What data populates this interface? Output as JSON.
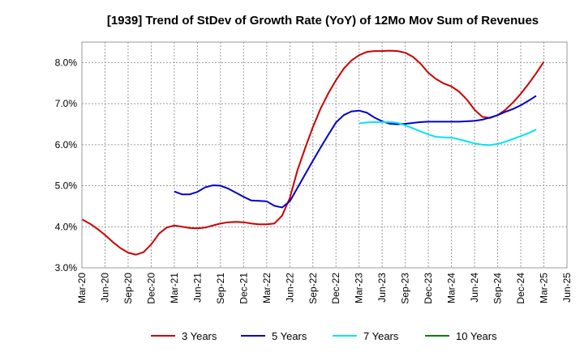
{
  "chart_data": {
    "type": "line",
    "title": "[1939]  Trend of StDev of Growth Rate (YoY) of 12Mo Mov Sum of Revenues",
    "xlabel": "",
    "ylabel": "",
    "ylim": [
      3.0,
      8.5
    ],
    "y_ticks": [
      3.0,
      4.0,
      5.0,
      6.0,
      7.0,
      8.0
    ],
    "y_tick_labels": [
      "3.0%",
      "4.0%",
      "5.0%",
      "6.0%",
      "7.0%",
      "8.0%"
    ],
    "x_tick_labels": [
      "Mar-20",
      "Jun-20",
      "Sep-20",
      "Dec-20",
      "Mar-21",
      "Jun-21",
      "Sep-21",
      "Dec-21",
      "Mar-22",
      "Jun-22",
      "Sep-22",
      "Dec-22",
      "Mar-23",
      "Jun-23",
      "Sep-23",
      "Dec-23",
      "Mar-24",
      "Jun-24",
      "Sep-24",
      "Dec-24",
      "Mar-25",
      "Jun-25"
    ],
    "x_start": "Mar-20",
    "x_months": 63,
    "grid": true,
    "legend_position": "bottom",
    "series": [
      {
        "name": "3 Years",
        "color": "#cc0000",
        "start_month": 0,
        "values": [
          4.18,
          4.08,
          3.95,
          3.8,
          3.63,
          3.48,
          3.37,
          3.32,
          3.38,
          3.57,
          3.83,
          3.98,
          4.03,
          4.0,
          3.97,
          3.96,
          3.98,
          4.03,
          4.08,
          4.11,
          4.12,
          4.11,
          4.08,
          4.06,
          4.06,
          4.08,
          4.27,
          4.7,
          5.38,
          5.92,
          6.43,
          6.88,
          7.25,
          7.57,
          7.85,
          8.05,
          8.18,
          8.26,
          8.28,
          8.28,
          8.29,
          8.28,
          8.24,
          8.14,
          7.97,
          7.75,
          7.6,
          7.49,
          7.42,
          7.29,
          7.1,
          6.85,
          6.68,
          6.65,
          6.72,
          6.85,
          7.03,
          7.24,
          7.48,
          7.74,
          8.02
        ]
      },
      {
        "name": "5 Years",
        "color": "#0000cc",
        "start_month": 12,
        "values": [
          4.86,
          4.79,
          4.79,
          4.85,
          4.96,
          5.01,
          5.0,
          4.93,
          4.83,
          4.73,
          4.64,
          4.63,
          4.62,
          4.51,
          4.47,
          4.62,
          4.95,
          5.28,
          5.61,
          5.93,
          6.24,
          6.54,
          6.72,
          6.81,
          6.83,
          6.78,
          6.66,
          6.57,
          6.51,
          6.5,
          6.51,
          6.53,
          6.55,
          6.56,
          6.56,
          6.56,
          6.56,
          6.56,
          6.57,
          6.58,
          6.61,
          6.66,
          6.72,
          6.8,
          6.87,
          6.96,
          7.07,
          7.19
        ]
      },
      {
        "name": "7 Years",
        "color": "#00e5ee",
        "start_month": 36,
        "values": [
          6.52,
          6.54,
          6.55,
          6.55,
          6.55,
          6.53,
          6.47,
          6.4,
          6.32,
          6.25,
          6.19,
          6.18,
          6.17,
          6.13,
          6.08,
          6.03,
          6.0,
          5.99,
          6.02,
          6.07,
          6.14,
          6.21,
          6.28,
          6.37
        ]
      },
      {
        "name": "10 Years",
        "color": "#008000",
        "start_month": 0,
        "values": []
      }
    ]
  }
}
